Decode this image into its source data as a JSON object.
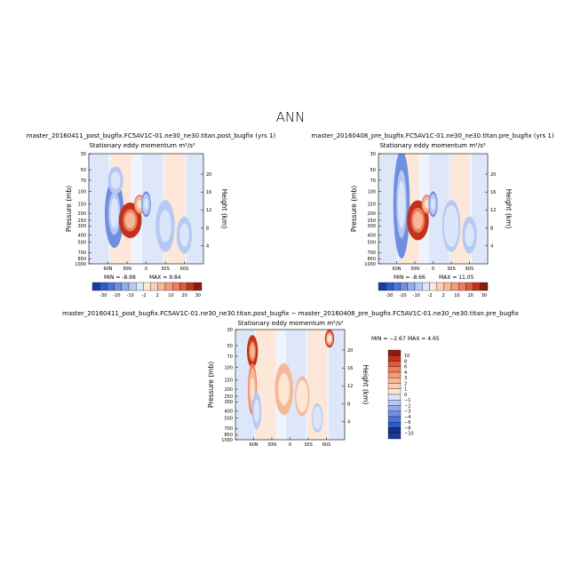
{
  "page_title": "ANN",
  "colors": {
    "neg_strong": "#1a3c9e",
    "neg_mid": "#6f8fe0",
    "neg_light": "#b6c8f4",
    "neg_faint": "#dbe6fa",
    "zero": "#ffffff",
    "pos_faint": "#fde6d4",
    "pos_light": "#f7b89a",
    "pos_mid": "#ef7d5c",
    "pos_strong": "#c2331c"
  },
  "chart_data": [
    {
      "type": "heatmap",
      "id": "panel-1",
      "case_title": "master_20160411_post_bugfix.FC5AV1C-01.ne30_ne30.titan.post_bugfix (yrs 1)",
      "subtitle": "Stationary eddy momentum  m²/s²",
      "xlabel": "",
      "ylabel": "Pressure (mb)",
      "ylabel_right": "Height (km)",
      "x_ticks": [
        "60N",
        "30N",
        "0",
        "30S",
        "60S"
      ],
      "x_tick_values": [
        60,
        30,
        0,
        -30,
        -60
      ],
      "xlim": [
        90,
        -90
      ],
      "y_ticks": [
        "30",
        "50",
        "70",
        "100",
        "150",
        "200",
        "250",
        "300",
        "400",
        "500",
        "700",
        "850",
        "1000"
      ],
      "y_tick_values": [
        30,
        50,
        70,
        100,
        150,
        200,
        250,
        300,
        400,
        500,
        700,
        850,
        1000
      ],
      "ylim": [
        1000,
        30
      ],
      "y_right_ticks": [
        "20",
        "16",
        "12",
        "8",
        "4"
      ],
      "y_right_values": [
        20,
        16,
        12,
        8,
        4
      ],
      "min_text": "MIN = -8.98",
      "max_text": "MAX = 9.84",
      "colorbar": {
        "levels": [
          "-30",
          "-20",
          "-10",
          "-2",
          "2",
          "10",
          "20",
          "30"
        ],
        "level_values": [
          -30,
          -20,
          -10,
          -2,
          2,
          10,
          20,
          30
        ]
      },
      "features": [
        {
          "lat": 50,
          "p": 200,
          "value": -6,
          "w_lat": 10,
          "w_p": 250
        },
        {
          "lat": 48,
          "p": 70,
          "value": -4,
          "w_lat": 8,
          "w_p": 40
        },
        {
          "lat": 25,
          "p": 250,
          "value": 9,
          "w_lat": 12,
          "w_p": 180
        },
        {
          "lat": 10,
          "p": 150,
          "value": 5,
          "w_lat": 6,
          "w_p": 60
        },
        {
          "lat": 0,
          "p": 150,
          "value": -5,
          "w_lat": 5,
          "w_p": 80
        },
        {
          "lat": -30,
          "p": 300,
          "value": -3,
          "w_lat": 10,
          "w_p": 300
        },
        {
          "lat": -60,
          "p": 400,
          "value": -4,
          "w_lat": 8,
          "w_p": 300
        }
      ]
    },
    {
      "type": "heatmap",
      "id": "panel-2",
      "case_title": "master_20160408_pre_bugfix.FC5AV1C-01.ne30_ne30.titan.pre_bugfix (yrs 1)",
      "subtitle": "Stationary eddy momentum  m²/s²",
      "xlabel": "",
      "ylabel": "Pressure (mb)",
      "ylabel_right": "Height (km)",
      "x_ticks": [
        "60N",
        "30N",
        "0",
        "30S",
        "60S"
      ],
      "x_tick_values": [
        60,
        30,
        0,
        -30,
        -60
      ],
      "xlim": [
        90,
        -90
      ],
      "y_ticks": [
        "30",
        "50",
        "70",
        "100",
        "150",
        "200",
        "250",
        "300",
        "400",
        "500",
        "700",
        "850",
        "1000"
      ],
      "y_tick_values": [
        30,
        50,
        70,
        100,
        150,
        200,
        250,
        300,
        400,
        500,
        700,
        850,
        1000
      ],
      "ylim": [
        1000,
        30
      ],
      "y_right_ticks": [
        "20",
        "16",
        "12",
        "8",
        "4"
      ],
      "y_right_values": [
        20,
        16,
        12,
        8,
        4
      ],
      "min_text": "MIN = -8.66",
      "max_text": "MAX = 11.05",
      "colorbar": {
        "levels": [
          "-30",
          "-20",
          "-10",
          "-2",
          "2",
          "10",
          "20",
          "30"
        ],
        "level_values": [
          -30,
          -20,
          -10,
          -2,
          2,
          10,
          20,
          30
        ]
      },
      "features": [
        {
          "lat": 52,
          "p": 150,
          "value": -7,
          "w_lat": 9,
          "w_p": 300
        },
        {
          "lat": 25,
          "p": 250,
          "value": 10,
          "w_lat": 12,
          "w_p": 200
        },
        {
          "lat": 10,
          "p": 150,
          "value": 5,
          "w_lat": 6,
          "w_p": 60
        },
        {
          "lat": 0,
          "p": 150,
          "value": -5,
          "w_lat": 5,
          "w_p": 80
        },
        {
          "lat": -30,
          "p": 300,
          "value": -3,
          "w_lat": 10,
          "w_p": 300
        },
        {
          "lat": -60,
          "p": 400,
          "value": -4,
          "w_lat": 8,
          "w_p": 300
        }
      ]
    },
    {
      "type": "heatmap",
      "id": "panel-diff",
      "case_title": "master_20160411_post_bugfix.FC5AV1C-01.ne30_ne30.titan.post_bugfix − master_20160408_pre_bugfix.FC5AV1C-01.ne30_ne30.titan.pre_bugfix",
      "subtitle": "Stationary eddy momentum  m²/s²",
      "xlabel": "",
      "ylabel": "Pressure (mb)",
      "ylabel_right": "Height (km)",
      "x_ticks": [
        "60N",
        "30N",
        "0",
        "30S",
        "60S"
      ],
      "x_tick_values": [
        60,
        30,
        0,
        -30,
        -60
      ],
      "xlim": [
        90,
        -90
      ],
      "y_ticks": [
        "30",
        "50",
        "70",
        "100",
        "150",
        "200",
        "250",
        "300",
        "400",
        "500",
        "700",
        "850",
        "1000"
      ],
      "y_tick_values": [
        30,
        50,
        70,
        100,
        150,
        200,
        250,
        300,
        400,
        500,
        700,
        850,
        1000
      ],
      "ylim": [
        1000,
        30
      ],
      "y_right_ticks": [
        "20",
        "16",
        "12",
        "8",
        "4"
      ],
      "y_right_values": [
        20,
        16,
        12,
        8,
        4
      ],
      "min_text": "MIN = −2.67",
      "max_text": "MAX = 4.65",
      "colorbar": {
        "levels": [
          "10",
          "8",
          "6",
          "4",
          "3",
          "2",
          "1",
          "0",
          "−1",
          "−2",
          "−3",
          "−4",
          "−6",
          "−8",
          "−10"
        ],
        "level_values": [
          10,
          8,
          6,
          4,
          3,
          2,
          1,
          0,
          -1,
          -2,
          -3,
          -4,
          -6,
          -8,
          -10
        ]
      },
      "features": [
        {
          "lat": 62,
          "p": 60,
          "value": 4.5,
          "w_lat": 6,
          "w_p": 40
        },
        {
          "lat": 62,
          "p": 200,
          "value": 2.5,
          "w_lat": 5,
          "w_p": 200
        },
        {
          "lat": 55,
          "p": 400,
          "value": -1.5,
          "w_lat": 5,
          "w_p": 300
        },
        {
          "lat": 10,
          "p": 200,
          "value": 1.5,
          "w_lat": 10,
          "w_p": 200
        },
        {
          "lat": -20,
          "p": 250,
          "value": 1.2,
          "w_lat": 8,
          "w_p": 200
        },
        {
          "lat": -65,
          "p": 40,
          "value": 3.5,
          "w_lat": 5,
          "w_p": 15
        },
        {
          "lat": -45,
          "p": 500,
          "value": -1.2,
          "w_lat": 6,
          "w_p": 300
        }
      ]
    }
  ]
}
